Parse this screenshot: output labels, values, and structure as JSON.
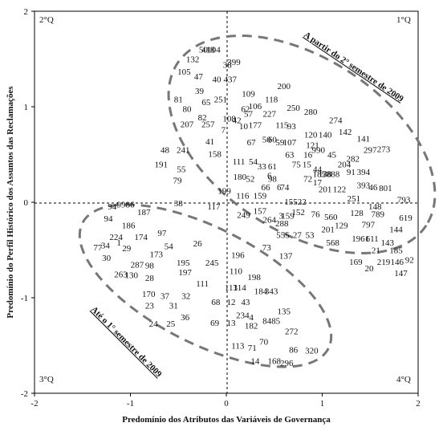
{
  "chart_data": {
    "type": "scatter",
    "xlabel": "Predomínio dos Atributos das Variáveis de Governança",
    "ylabel": "Predomínio do Perfil Histórico dos Assuntos das Reclamações",
    "xlim": [
      -2,
      2
    ],
    "ylim": [
      -2,
      2
    ],
    "x_ticks": [
      "-2",
      "-1",
      "0",
      "1",
      "2"
    ],
    "y_ticks": [
      "2",
      "1",
      "0",
      "-1",
      "-2"
    ],
    "grid": false,
    "quadrants": {
      "q1": "1°Q",
      "q2": "2°Q",
      "q3": "3°Q",
      "q4": "4°Q"
    },
    "annotations": {
      "upper_group": "A partir do 2° semestre de 2009",
      "lower_group": "Até o 1° semestre de 2009"
    },
    "points": [
      {
        "label": "50",
        "x": -0.24,
        "y": 1.6
      },
      {
        "label": "104",
        "x": -0.13,
        "y": 1.6
      },
      {
        "label": "418",
        "x": -0.19,
        "y": 1.6
      },
      {
        "label": "132",
        "x": -0.35,
        "y": 1.5
      },
      {
        "label": "38",
        "x": 0.01,
        "y": 1.44
      },
      {
        "label": "399",
        "x": 0.08,
        "y": 1.47
      },
      {
        "label": "105",
        "x": -0.44,
        "y": 1.37
      },
      {
        "label": "47",
        "x": -0.29,
        "y": 1.32
      },
      {
        "label": "40",
        "x": -0.1,
        "y": 1.29
      },
      {
        "label": "437",
        "x": 0.04,
        "y": 1.29
      },
      {
        "label": "39",
        "x": -0.28,
        "y": 1.17
      },
      {
        "label": "81",
        "x": -0.5,
        "y": 1.08
      },
      {
        "label": "65",
        "x": -0.21,
        "y": 1.05
      },
      {
        "label": "251",
        "x": -0.06,
        "y": 1.08
      },
      {
        "label": "109",
        "x": 0.23,
        "y": 1.14
      },
      {
        "label": "200",
        "x": 0.6,
        "y": 1.22
      },
      {
        "label": "118",
        "x": 0.47,
        "y": 1.08
      },
      {
        "label": "80",
        "x": -0.41,
        "y": 0.98
      },
      {
        "label": "62",
        "x": 0.2,
        "y": 0.98
      },
      {
        "label": "106",
        "x": 0.3,
        "y": 1.01
      },
      {
        "label": "57",
        "x": 0.23,
        "y": 0.93
      },
      {
        "label": "227",
        "x": 0.45,
        "y": 0.93
      },
      {
        "label": "250",
        "x": 0.7,
        "y": 0.99
      },
      {
        "label": "280",
        "x": 0.88,
        "y": 0.95
      },
      {
        "label": "82",
        "x": -0.25,
        "y": 0.89
      },
      {
        "label": "108",
        "x": 0.03,
        "y": 0.88
      },
      {
        "label": "42",
        "x": 0.11,
        "y": 0.86
      },
      {
        "label": "274",
        "x": 1.14,
        "y": 0.86
      },
      {
        "label": "207",
        "x": -0.41,
        "y": 0.82
      },
      {
        "label": "257",
        "x": -0.19,
        "y": 0.82
      },
      {
        "label": "10",
        "x": 0.18,
        "y": 0.8
      },
      {
        "label": "177",
        "x": 0.3,
        "y": 0.81
      },
      {
        "label": "115",
        "x": 0.58,
        "y": 0.81
      },
      {
        "label": "93",
        "x": 0.68,
        "y": 0.8
      },
      {
        "label": "7",
        "x": -0.03,
        "y": 0.76
      },
      {
        "label": "120",
        "x": 0.88,
        "y": 0.71
      },
      {
        "label": "140",
        "x": 1.03,
        "y": 0.71
      },
      {
        "label": "142",
        "x": 1.24,
        "y": 0.74
      },
      {
        "label": "41",
        "x": -0.17,
        "y": 0.64
      },
      {
        "label": "67",
        "x": 0.26,
        "y": 0.63
      },
      {
        "label": "50",
        "x": 0.42,
        "y": 0.66
      },
      {
        "label": "60",
        "x": 0.48,
        "y": 0.66
      },
      {
        "label": "59",
        "x": 0.56,
        "y": 0.63
      },
      {
        "label": "107",
        "x": 0.66,
        "y": 0.63
      },
      {
        "label": "121",
        "x": 0.9,
        "y": 0.6
      },
      {
        "label": "141",
        "x": 1.43,
        "y": 0.67
      },
      {
        "label": "48",
        "x": -0.64,
        "y": 0.55
      },
      {
        "label": "241",
        "x": -0.45,
        "y": 0.55
      },
      {
        "label": "158",
        "x": -0.12,
        "y": 0.51
      },
      {
        "label": "63",
        "x": 0.66,
        "y": 0.5
      },
      {
        "label": "16",
        "x": 0.85,
        "y": 0.5
      },
      {
        "label": "990",
        "x": 0.96,
        "y": 0.55
      },
      {
        "label": "45",
        "x": 1.1,
        "y": 0.5
      },
      {
        "label": "282",
        "x": 1.32,
        "y": 0.46
      },
      {
        "label": "297",
        "x": 1.5,
        "y": 0.55
      },
      {
        "label": "273",
        "x": 1.64,
        "y": 0.56
      },
      {
        "label": "191",
        "x": -0.68,
        "y": 0.4
      },
      {
        "label": "111",
        "x": 0.13,
        "y": 0.43
      },
      {
        "label": "54",
        "x": 0.28,
        "y": 0.43
      },
      {
        "label": "33",
        "x": 0.37,
        "y": 0.38
      },
      {
        "label": "61",
        "x": 0.48,
        "y": 0.38
      },
      {
        "label": "75",
        "x": 0.73,
        "y": 0.4
      },
      {
        "label": "15",
        "x": 0.84,
        "y": 0.4
      },
      {
        "label": "204",
        "x": 1.23,
        "y": 0.4
      },
      {
        "label": "55",
        "x": -0.47,
        "y": 0.35
      },
      {
        "label": "44",
        "x": 0.95,
        "y": 0.35
      },
      {
        "label": "185",
        "x": 0.97,
        "y": 0.3
      },
      {
        "label": "138",
        "x": 1.03,
        "y": 0.3
      },
      {
        "label": "7888",
        "x": 1.09,
        "y": 0.3
      },
      {
        "label": "91",
        "x": 1.3,
        "y": 0.32
      },
      {
        "label": "394",
        "x": 1.43,
        "y": 0.32
      },
      {
        "label": "79",
        "x": -0.51,
        "y": 0.23
      },
      {
        "label": "180",
        "x": 0.14,
        "y": 0.27
      },
      {
        "label": "52",
        "x": 0.25,
        "y": 0.25
      },
      {
        "label": "6",
        "x": 0.45,
        "y": 0.28
      },
      {
        "label": "98",
        "x": 0.48,
        "y": 0.25
      },
      {
        "label": "72",
        "x": 0.85,
        "y": 0.25
      },
      {
        "label": "17",
        "x": 0.95,
        "y": 0.21
      },
      {
        "label": "393",
        "x": 1.43,
        "y": 0.18
      },
      {
        "label": "46",
        "x": 1.53,
        "y": 0.16
      },
      {
        "label": "801",
        "x": 1.66,
        "y": 0.15
      },
      {
        "label": "66",
        "x": 0.41,
        "y": 0.16
      },
      {
        "label": "6",
        "x": 0.55,
        "y": 0.16
      },
      {
        "label": "74",
        "x": 0.61,
        "y": 0.16
      },
      {
        "label": "201",
        "x": 1.03,
        "y": 0.14
      },
      {
        "label": "122",
        "x": 1.18,
        "y": 0.14
      },
      {
        "label": "199",
        "x": -0.02,
        "y": 0.12
      },
      {
        "label": "116",
        "x": 0.17,
        "y": 0.07
      },
      {
        "label": "159",
        "x": 0.35,
        "y": 0.07
      },
      {
        "label": "251",
        "x": 1.33,
        "y": 0.04
      },
      {
        "label": "793",
        "x": 1.85,
        "y": 0.03
      },
      {
        "label": "94",
        "x": -1.19,
        "y": -0.04
      },
      {
        "label": "9986",
        "x": -1.05,
        "y": -0.02
      },
      {
        "label": "38",
        "x": -0.5,
        "y": -0.01
      },
      {
        "label": "117",
        "x": -0.13,
        "y": -0.04
      },
      {
        "label": "15522",
        "x": 0.72,
        "y": 0.01
      },
      {
        "label": "148",
        "x": 1.55,
        "y": -0.04
      },
      {
        "label": "187",
        "x": -0.86,
        "y": -0.1
      },
      {
        "label": "249",
        "x": 0.18,
        "y": -0.13
      },
      {
        "label": "157",
        "x": 0.35,
        "y": -0.09
      },
      {
        "label": "3",
        "x": 0.57,
        "y": -0.14
      },
      {
        "label": "159",
        "x": 0.64,
        "y": -0.14
      },
      {
        "label": "152",
        "x": 0.75,
        "y": -0.1
      },
      {
        "label": "76",
        "x": 0.93,
        "y": -0.12
      },
      {
        "label": "560",
        "x": 1.09,
        "y": -0.15
      },
      {
        "label": "128",
        "x": 1.36,
        "y": -0.11
      },
      {
        "label": "789",
        "x": 1.58,
        "y": -0.12
      },
      {
        "label": "94",
        "x": -1.23,
        "y": -0.17
      },
      {
        "label": "264",
        "x": 0.45,
        "y": -0.18
      },
      {
        "label": "619",
        "x": 1.87,
        "y": -0.16
      },
      {
        "label": "186",
        "x": -1.02,
        "y": -0.24
      },
      {
        "label": "288",
        "x": 0.58,
        "y": -0.22
      },
      {
        "label": "129",
        "x": 1.2,
        "y": -0.24
      },
      {
        "label": "797",
        "x": 1.48,
        "y": -0.23
      },
      {
        "label": "144",
        "x": 1.77,
        "y": -0.28
      },
      {
        "label": "224",
        "x": -1.15,
        "y": -0.36
      },
      {
        "label": "174",
        "x": -0.89,
        "y": -0.36
      },
      {
        "label": "97",
        "x": -0.67,
        "y": -0.32
      },
      {
        "label": "27",
        "x": 0.74,
        "y": -0.34
      },
      {
        "label": "53",
        "x": 0.87,
        "y": -0.34
      },
      {
        "label": "201",
        "x": 1.06,
        "y": -0.28
      },
      {
        "label": "555",
        "x": 0.59,
        "y": -0.34
      },
      {
        "label": "1961",
        "x": 1.4,
        "y": -0.38
      },
      {
        "label": "611",
        "x": 1.52,
        "y": -0.38
      },
      {
        "label": "77",
        "x": -1.34,
        "y": -0.47
      },
      {
        "label": "34",
        "x": -1.26,
        "y": -0.45
      },
      {
        "label": "1",
        "x": -1.12,
        "y": -0.42
      },
      {
        "label": "29",
        "x": -1.04,
        "y": -0.48
      },
      {
        "label": "54",
        "x": -0.6,
        "y": -0.46
      },
      {
        "label": "26",
        "x": -0.3,
        "y": -0.43
      },
      {
        "label": "73",
        "x": 0.42,
        "y": -0.47
      },
      {
        "label": "568",
        "x": 1.11,
        "y": -0.42
      },
      {
        "label": "143",
        "x": 1.68,
        "y": -0.42
      },
      {
        "label": "185",
        "x": 1.77,
        "y": -0.5
      },
      {
        "label": "173",
        "x": -0.73,
        "y": -0.54
      },
      {
        "label": "21",
        "x": 1.56,
        "y": -0.5
      },
      {
        "label": "30",
        "x": -1.25,
        "y": -0.58
      },
      {
        "label": "196",
        "x": 0.12,
        "y": -0.55
      },
      {
        "label": "137",
        "x": 0.62,
        "y": -0.56
      },
      {
        "label": "92",
        "x": 1.91,
        "y": -0.6
      },
      {
        "label": "146",
        "x": 1.78,
        "y": -0.62
      },
      {
        "label": "287",
        "x": -0.93,
        "y": -0.65
      },
      {
        "label": "98",
        "x": -0.8,
        "y": -0.66
      },
      {
        "label": "195",
        "x": -0.45,
        "y": -0.63
      },
      {
        "label": "245",
        "x": -0.15,
        "y": -0.63
      },
      {
        "label": "169",
        "x": 1.35,
        "y": -0.62
      },
      {
        "label": "219",
        "x": 1.64,
        "y": -0.62
      },
      {
        "label": "20",
        "x": 1.49,
        "y": -0.69
      },
      {
        "label": "263",
        "x": -1.1,
        "y": -0.75
      },
      {
        "label": "130",
        "x": -0.99,
        "y": -0.76
      },
      {
        "label": "197",
        "x": -0.43,
        "y": -0.73
      },
      {
        "label": "110",
        "x": 0.1,
        "y": -0.72
      },
      {
        "label": "147",
        "x": 1.82,
        "y": -0.74
      },
      {
        "label": "28",
        "x": -0.8,
        "y": -0.79
      },
      {
        "label": "198",
        "x": 0.29,
        "y": -0.78
      },
      {
        "label": "111",
        "x": -0.25,
        "y": -0.85
      },
      {
        "label": "113",
        "x": 0.05,
        "y": -0.89
      },
      {
        "label": "114",
        "x": 0.14,
        "y": -0.89
      },
      {
        "label": "184",
        "x": 0.36,
        "y": -0.93
      },
      {
        "label": "343",
        "x": 0.47,
        "y": -0.93
      },
      {
        "label": "170",
        "x": -0.81,
        "y": -0.96
      },
      {
        "label": "37",
        "x": -0.64,
        "y": -0.98
      },
      {
        "label": "32",
        "x": -0.42,
        "y": -0.98
      },
      {
        "label": "12",
        "x": 0.05,
        "y": -1.04
      },
      {
        "label": "43",
        "x": 0.2,
        "y": -1.04
      },
      {
        "label": "68",
        "x": -0.11,
        "y": -1.04
      },
      {
        "label": "23",
        "x": -0.8,
        "y": -1.08
      },
      {
        "label": "31",
        "x": -0.55,
        "y": -1.08
      },
      {
        "label": "135",
        "x": 0.6,
        "y": -1.14
      },
      {
        "label": "234",
        "x": 0.17,
        "y": -1.18
      },
      {
        "label": "36",
        "x": -0.43,
        "y": -1.2
      },
      {
        "label": "4",
        "x": 0.26,
        "y": -1.2
      },
      {
        "label": "8485",
        "x": 0.47,
        "y": -1.24
      },
      {
        "label": "24",
        "x": -0.76,
        "y": -1.27
      },
      {
        "label": "25",
        "x": -0.58,
        "y": -1.27
      },
      {
        "label": "69",
        "x": -0.12,
        "y": -1.26
      },
      {
        "label": "13",
        "x": 0.05,
        "y": -1.26
      },
      {
        "label": "182",
        "x": 0.26,
        "y": -1.29
      },
      {
        "label": "272",
        "x": 0.68,
        "y": -1.35
      },
      {
        "label": "70",
        "x": 0.39,
        "y": -1.46
      },
      {
        "label": "113",
        "x": 0.12,
        "y": -1.5
      },
      {
        "label": "71",
        "x": 0.27,
        "y": -1.52
      },
      {
        "label": "86",
        "x": 0.7,
        "y": -1.54
      },
      {
        "label": "320",
        "x": 0.89,
        "y": -1.55
      },
      {
        "label": "14",
        "x": 0.3,
        "y": -1.66
      },
      {
        "label": "168",
        "x": 0.5,
        "y": -1.66
      },
      {
        "label": "296",
        "x": 0.63,
        "y": -1.68
      }
    ]
  }
}
